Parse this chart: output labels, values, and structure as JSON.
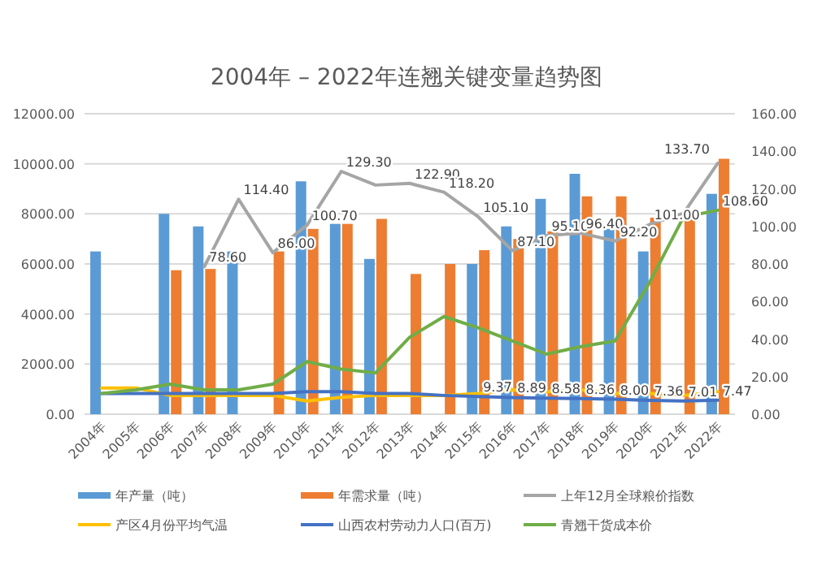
{
  "chart_data": {
    "type": "bar",
    "title": "2004年 – 2022年连翘关键变量趋势图",
    "categories": [
      "2004年",
      "2005年",
      "2006年",
      "2007年",
      "2008年",
      "2009年",
      "2010年",
      "2011年",
      "2012年",
      "2013年",
      "2014年",
      "2015年",
      "2016年",
      "2017年",
      "2018年",
      "2019年",
      "2020年",
      "2021年",
      "2022年"
    ],
    "series": [
      {
        "name": "年产量（吨）",
        "color": "#5b9bd5",
        "values": [
          6500,
          null,
          8000,
          7500,
          6500,
          null,
          9300,
          7600,
          6200,
          null,
          null,
          6000,
          7500,
          8600,
          9600,
          7400,
          6500,
          null,
          8800
        ]
      },
      {
        "name": "年需求量（吨）",
        "color": "#ed7d31",
        "values": [
          null,
          null,
          5750,
          5800,
          null,
          6500,
          7400,
          7600,
          7800,
          5600,
          6000,
          6550,
          7000,
          7300,
          8700,
          8700,
          7850,
          7900,
          10200
        ]
      },
      {
        "name": "上年12月全球粮价指数",
        "type": "line",
        "axis": "y2",
        "color": "#a5a5a5",
        "values": [
          null,
          null,
          null,
          78.6,
          114.4,
          86.0,
          100.7,
          129.3,
          122,
          122.9,
          118.2,
          105.1,
          87.1,
          95.1,
          96.4,
          92.2,
          101.0,
          107,
          133.7
        ],
        "value_labels": [
          null,
          null,
          null,
          "78.60",
          "114.40",
          "86.00",
          "100.70",
          "129.30",
          null,
          "122.90",
          "118.20",
          "105.10",
          "87.10",
          "95.10",
          "96.40",
          "92.20",
          "101.00",
          null,
          "133.70"
        ]
      },
      {
        "name": "产区4月份平均气温",
        "type": "line",
        "axis": "y2",
        "color": "#ffc000",
        "values": [
          14,
          14,
          10,
          10,
          10,
          10,
          7,
          9,
          10,
          10,
          10,
          11,
          13,
          12,
          13,
          11,
          11,
          10,
          12
        ]
      },
      {
        "name": "山西农村劳动力人口(百万)",
        "type": "line",
        "axis": "y2",
        "color": "#4472c4",
        "values": [
          11,
          11,
          11,
          11,
          11,
          11,
          12,
          12,
          11,
          11,
          10,
          9.37,
          8.89,
          8.58,
          8.36,
          8.0,
          7.36,
          7.01,
          7.47
        ],
        "value_labels": [
          null,
          null,
          null,
          null,
          null,
          null,
          null,
          null,
          null,
          null,
          null,
          "9.37",
          "8.89",
          "8.58",
          "8.36",
          "8.00",
          "7.36",
          "7.01",
          "7.47"
        ]
      },
      {
        "name": "青翘干货成本价",
        "type": "line",
        "axis": "y2",
        "color": "#70ad47",
        "values": [
          11,
          13,
          16,
          13,
          13,
          16,
          28,
          24,
          22,
          41,
          52,
          46,
          39,
          32,
          36,
          39,
          70,
          105,
          108.6
        ],
        "value_labels": [
          null,
          null,
          null,
          null,
          null,
          null,
          null,
          null,
          null,
          null,
          null,
          null,
          null,
          null,
          null,
          null,
          null,
          null,
          "108.60"
        ]
      }
    ],
    "ylim": [
      0,
      12000
    ],
    "yticks": [
      {
        "value": 0,
        "label": "0.00"
      },
      {
        "value": 2000,
        "label": "2000.00"
      },
      {
        "value": 4000,
        "label": "4000.00"
      },
      {
        "value": 6000,
        "label": "6000.00"
      },
      {
        "value": 8000,
        "label": "8000.00"
      },
      {
        "value": 10000,
        "label": "10000.00"
      },
      {
        "value": 12000,
        "label": "12000.00"
      }
    ],
    "y2lim": [
      0,
      160
    ],
    "y2ticks": [
      {
        "value": 0,
        "label": "0.00"
      },
      {
        "value": 20,
        "label": "20.00"
      },
      {
        "value": 40,
        "label": "40.00"
      },
      {
        "value": 60,
        "label": "60.00"
      },
      {
        "value": 80,
        "label": "80.00"
      },
      {
        "value": 100,
        "label": "100.00"
      },
      {
        "value": 120,
        "label": "120.00"
      },
      {
        "value": 140,
        "label": "140.00"
      },
      {
        "value": 160,
        "label": "160.00"
      }
    ],
    "grid": "y",
    "legend": "bottom",
    "marker": "none"
  }
}
